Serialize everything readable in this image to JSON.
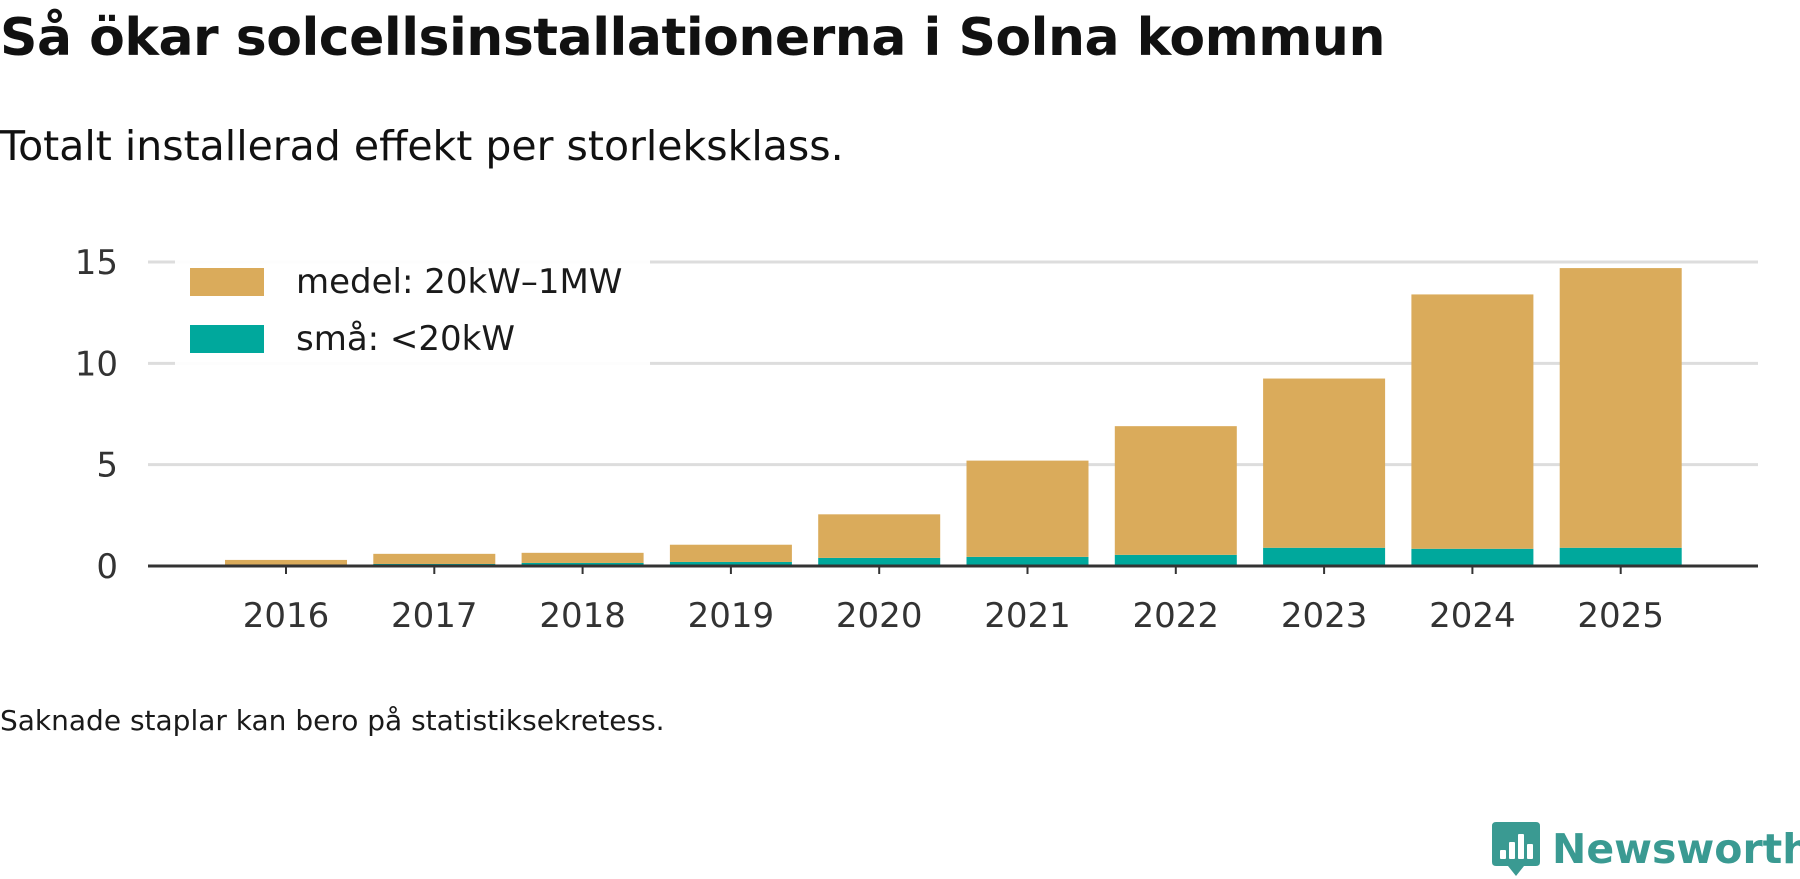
{
  "title": "Så ökar solcellsinstallationerna i Solna kommun",
  "subtitle": "Totalt installerad effekt per storleksklass.",
  "note": "Saknade staplar kan bero på statistiksekretess.",
  "brand": {
    "name": "Newsworthy",
    "icon": "newsworthy-logo-icon"
  },
  "colors": {
    "medel": "#daab5b",
    "sma": "#00a89c",
    "grid": "#dddddd",
    "axis": "#333333",
    "brand": "#3a9a92"
  },
  "chart_data": {
    "type": "bar",
    "stacked": true,
    "title": "Så ökar solcellsinstallationerna i Solna kommun",
    "subtitle": "Totalt installerad effekt per storleksklass.",
    "xlabel": "",
    "ylabel": "",
    "categories": [
      "2016",
      "2017",
      "2018",
      "2019",
      "2020",
      "2021",
      "2022",
      "2023",
      "2024",
      "2025"
    ],
    "series": [
      {
        "name": "små: <20kW",
        "color": "#00a89c",
        "values": [
          0.05,
          0.1,
          0.15,
          0.2,
          0.4,
          0.45,
          0.55,
          0.9,
          0.85,
          0.9
        ]
      },
      {
        "name": "medel: 20kW–1MW",
        "color": "#daab5b",
        "values": [
          0.25,
          0.5,
          0.5,
          0.85,
          2.15,
          4.75,
          6.35,
          8.35,
          12.55,
          13.8
        ]
      }
    ],
    "legend_order": [
      "medel: 20kW–1MW",
      "små: <20kW"
    ],
    "legend_position": "top-left",
    "ylim": [
      0,
      15
    ],
    "yticks": [
      0,
      5,
      10,
      15
    ],
    "grid": true
  }
}
